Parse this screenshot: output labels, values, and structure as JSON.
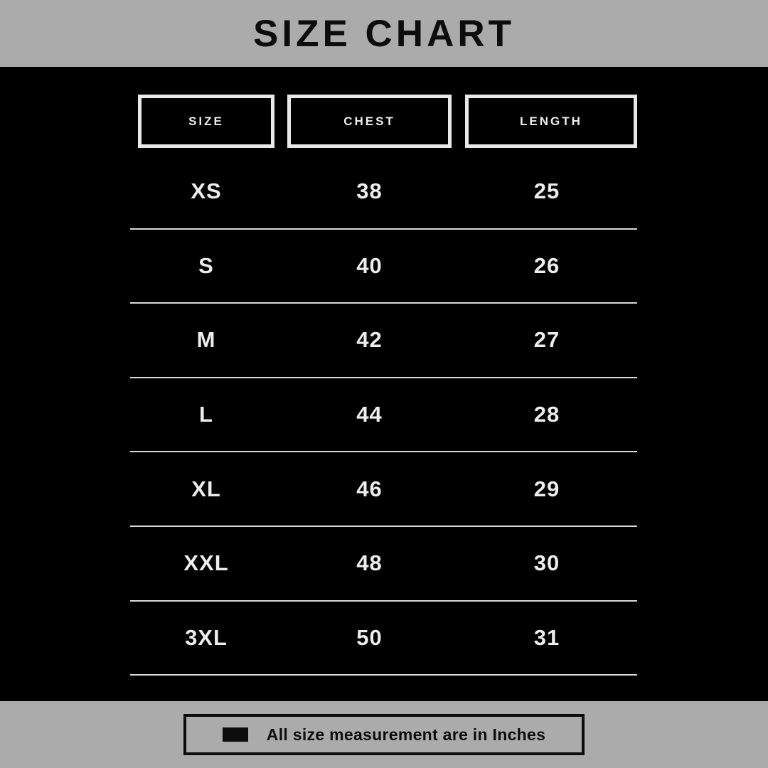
{
  "title": "SIZE CHART",
  "chart_data": {
    "type": "table",
    "title": "SIZE CHART",
    "columns": [
      "SIZE",
      "CHEST",
      "LENGTH"
    ],
    "rows": [
      [
        "XS",
        "38",
        "25"
      ],
      [
        "S",
        "40",
        "26"
      ],
      [
        "M",
        "42",
        "27"
      ],
      [
        "L",
        "44",
        "28"
      ],
      [
        "XL",
        "46",
        "29"
      ],
      [
        "XXL",
        "48",
        "30"
      ],
      [
        "3XL",
        "50",
        "31"
      ]
    ],
    "units_note": "All size measurement are in Inches",
    "layout": {
      "legend_position": "bottom",
      "grid": "horizontal-lines"
    }
  },
  "footer": {
    "note": "All size measurement are in Inches",
    "swatch_icon": "black-rectangle"
  },
  "colors": {
    "banner_gray": "#ababab",
    "bg_black": "#000000",
    "text_light": "#ededed",
    "text_dark": "#0d0d0d",
    "line_gray": "#d9d9d9",
    "box_border": "#e9e9e9"
  }
}
